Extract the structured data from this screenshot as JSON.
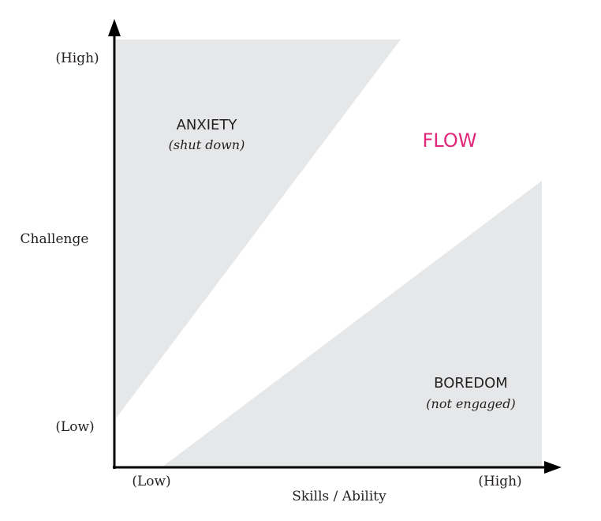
{
  "diagram": {
    "y_axis": {
      "label": "Challenge",
      "high_label": "(High)",
      "low_label": "(Low)"
    },
    "x_axis": {
      "label": "Skills / Ability",
      "low_label": "(Low)",
      "high_label": "(High)"
    },
    "zones": {
      "anxiety": {
        "title": "ANXIETY",
        "subtitle": "(shut down)"
      },
      "flow": {
        "title": "FLOW"
      },
      "boredom": {
        "title": "BOREDOM",
        "subtitle": "(not engaged)"
      }
    }
  },
  "colors": {
    "zone_fill": "#e6e7e8",
    "axis": "#000000",
    "text": "#231f20",
    "flow_accent": "#e0287a"
  }
}
